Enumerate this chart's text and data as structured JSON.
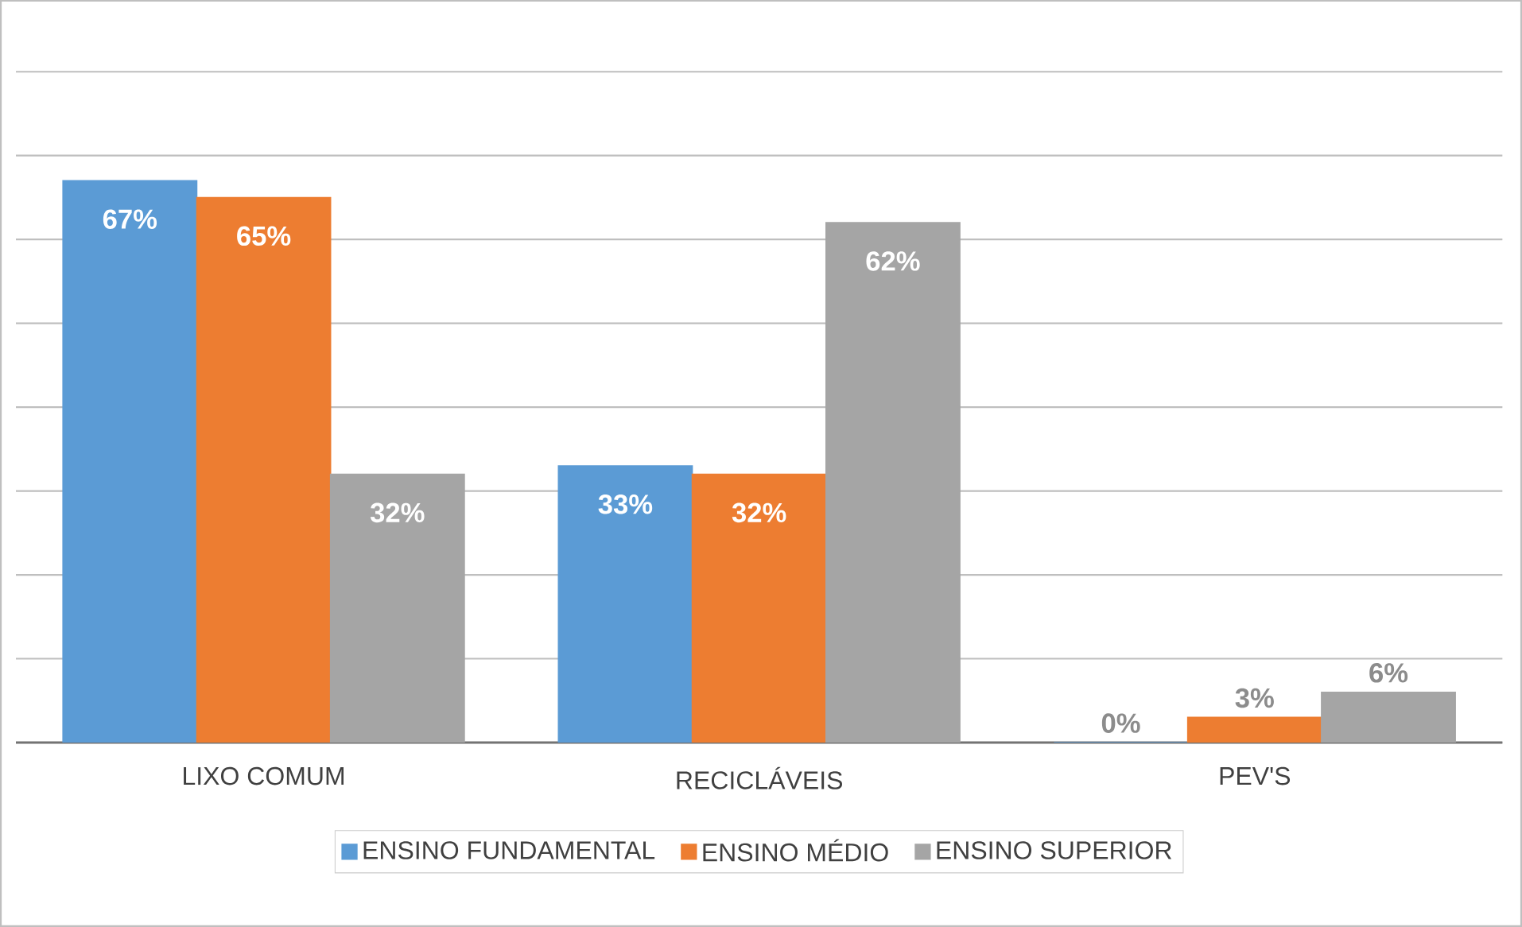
{
  "chart_data": {
    "type": "bar",
    "categories": [
      "LIXO COMUM",
      "RECICLÁVEIS",
      "PEV'S"
    ],
    "series": [
      {
        "name": "ENSINO FUNDAMENTAL",
        "color": "#5b9bd5",
        "values": [
          67,
          33,
          0
        ],
        "value_labels": [
          "67%",
          "33%",
          "0%"
        ]
      },
      {
        "name": "ENSINO MÉDIO",
        "color": "#ed7d31",
        "values": [
          65,
          32,
          3
        ],
        "value_labels": [
          "65%",
          "32%",
          "3%"
        ]
      },
      {
        "name": "ENSINO SUPERIOR",
        "color": "#a5a5a5",
        "values": [
          32,
          62,
          6
        ],
        "value_labels": [
          "32%",
          "62%",
          "6%"
        ]
      }
    ],
    "grid": "y",
    "legend": "bottom"
  }
}
